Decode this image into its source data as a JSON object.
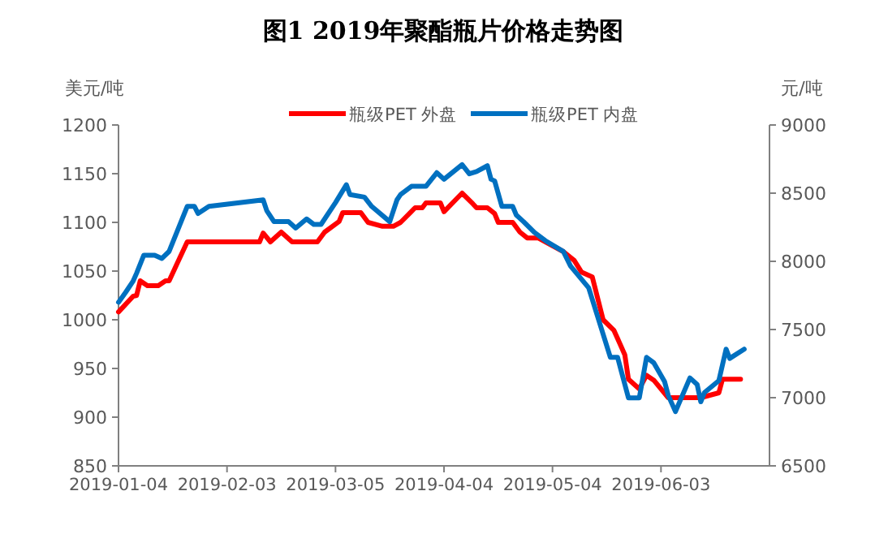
{
  "chart_data": {
    "type": "line",
    "title": "图1 2019年聚酯瓶片价格走势图",
    "ylabel": "美元/吨",
    "y2label": "元/吨",
    "xlim": [
      "2019-01-04",
      "2019-07-03"
    ],
    "xticks": [
      "2019-01-04",
      "2019-02-03",
      "2019-03-05",
      "2019-04-04",
      "2019-05-04",
      "2019-06-03"
    ],
    "ylim": [
      850,
      1200
    ],
    "yticks": [
      850,
      900,
      950,
      1000,
      1050,
      1100,
      1150,
      1200
    ],
    "y2lim": [
      6500,
      9000
    ],
    "y2ticks": [
      6500,
      7000,
      7500,
      8000,
      8500,
      9000
    ],
    "legend": "top",
    "marker": "none",
    "line_style": "solid",
    "grid": false,
    "series": [
      {
        "name": "瓶级PET 外盘",
        "color": "#ff0000",
        "x": [
          "2019-01-04",
          "2019-01-08",
          "2019-01-09",
          "2019-01-10",
          "2019-01-12",
          "2019-01-15",
          "2019-01-17",
          "2019-01-18",
          "2019-01-20",
          "2019-01-23",
          "2019-02-12",
          "2019-02-13",
          "2019-02-15",
          "2019-02-18",
          "2019-02-21",
          "2019-02-28",
          "2019-03-02",
          "2019-03-06",
          "2019-03-07",
          "2019-03-12",
          "2019-03-14",
          "2019-03-18",
          "2019-03-21",
          "2019-03-23",
          "2019-03-27",
          "2019-03-29",
          "2019-03-30",
          "2019-04-03",
          "2019-04-04",
          "2019-04-09",
          "2019-04-12",
          "2019-04-13",
          "2019-04-16",
          "2019-04-18",
          "2019-04-19",
          "2019-04-23",
          "2019-04-25",
          "2019-04-27",
          "2019-04-30",
          "2019-05-07",
          "2019-05-10",
          "2019-05-12",
          "2019-05-15",
          "2019-05-18",
          "2019-05-21",
          "2019-05-24",
          "2019-05-25",
          "2019-05-28",
          "2019-05-30",
          "2019-06-01",
          "2019-06-05",
          "2019-06-14",
          "2019-06-19",
          "2019-06-20",
          "2019-06-25"
        ],
        "values": [
          1008,
          1024,
          1025,
          1040,
          1035,
          1035,
          1040,
          1040,
          1056,
          1080,
          1080,
          1089,
          1080,
          1090,
          1080,
          1080,
          1090,
          1101,
          1110,
          1110,
          1100,
          1096,
          1096,
          1100,
          1115,
          1115,
          1120,
          1120,
          1111,
          1130,
          1119,
          1115,
          1115,
          1109,
          1100,
          1100,
          1090,
          1084,
          1084,
          1070,
          1061,
          1049,
          1044,
          1000,
          989,
          964,
          939,
          929,
          943,
          938,
          920,
          920,
          925,
          939,
          939
        ]
      },
      {
        "name": "瓶级PET 内盘",
        "color": "#0070c0",
        "axis": "y2",
        "x": [
          "2019-01-04",
          "2019-01-06",
          "2019-01-08",
          "2019-01-09",
          "2019-01-11",
          "2019-01-14",
          "2019-01-16",
          "2019-01-18",
          "2019-01-23",
          "2019-01-25",
          "2019-01-26",
          "2019-01-29",
          "2019-02-13",
          "2019-02-14",
          "2019-02-16",
          "2019-02-20",
          "2019-02-22",
          "2019-02-25",
          "2019-02-27",
          "2019-03-01",
          "2019-03-05",
          "2019-03-08",
          "2019-03-09",
          "2019-03-13",
          "2019-03-15",
          "2019-03-20",
          "2019-03-22",
          "2019-03-23",
          "2019-03-26",
          "2019-03-30",
          "2019-04-02",
          "2019-04-04",
          "2019-04-09",
          "2019-04-11",
          "2019-04-13",
          "2019-04-16",
          "2019-04-17",
          "2019-04-18",
          "2019-04-20",
          "2019-04-23",
          "2019-04-24",
          "2019-04-26",
          "2019-04-29",
          "2019-05-02",
          "2019-05-07",
          "2019-05-09",
          "2019-05-14",
          "2019-05-20",
          "2019-05-22",
          "2019-05-25",
          "2019-05-28",
          "2019-05-30",
          "2019-06-01",
          "2019-06-04",
          "2019-06-05",
          "2019-06-07",
          "2019-06-11",
          "2019-06-13",
          "2019-06-14",
          "2019-06-15",
          "2019-06-19",
          "2019-06-21",
          "2019-06-22",
          "2019-06-26"
        ],
        "values": [
          7700,
          7774,
          7853,
          7913,
          8045,
          8045,
          8021,
          8073,
          8403,
          8403,
          8351,
          8403,
          8451,
          8371,
          8291,
          8291,
          8244,
          8311,
          8271,
          8271,
          8431,
          8562,
          8490,
          8471,
          8403,
          8291,
          8451,
          8490,
          8550,
          8550,
          8650,
          8602,
          8709,
          8642,
          8658,
          8701,
          8602,
          8590,
          8403,
          8403,
          8339,
          8291,
          8212,
          8152,
          8072,
          7965,
          7806,
          7296,
          7296,
          6998,
          6998,
          7296,
          7256,
          7117,
          7017,
          6898,
          7145,
          7097,
          6970,
          7037,
          7125,
          7356,
          7288,
          7356
        ]
      }
    ]
  }
}
